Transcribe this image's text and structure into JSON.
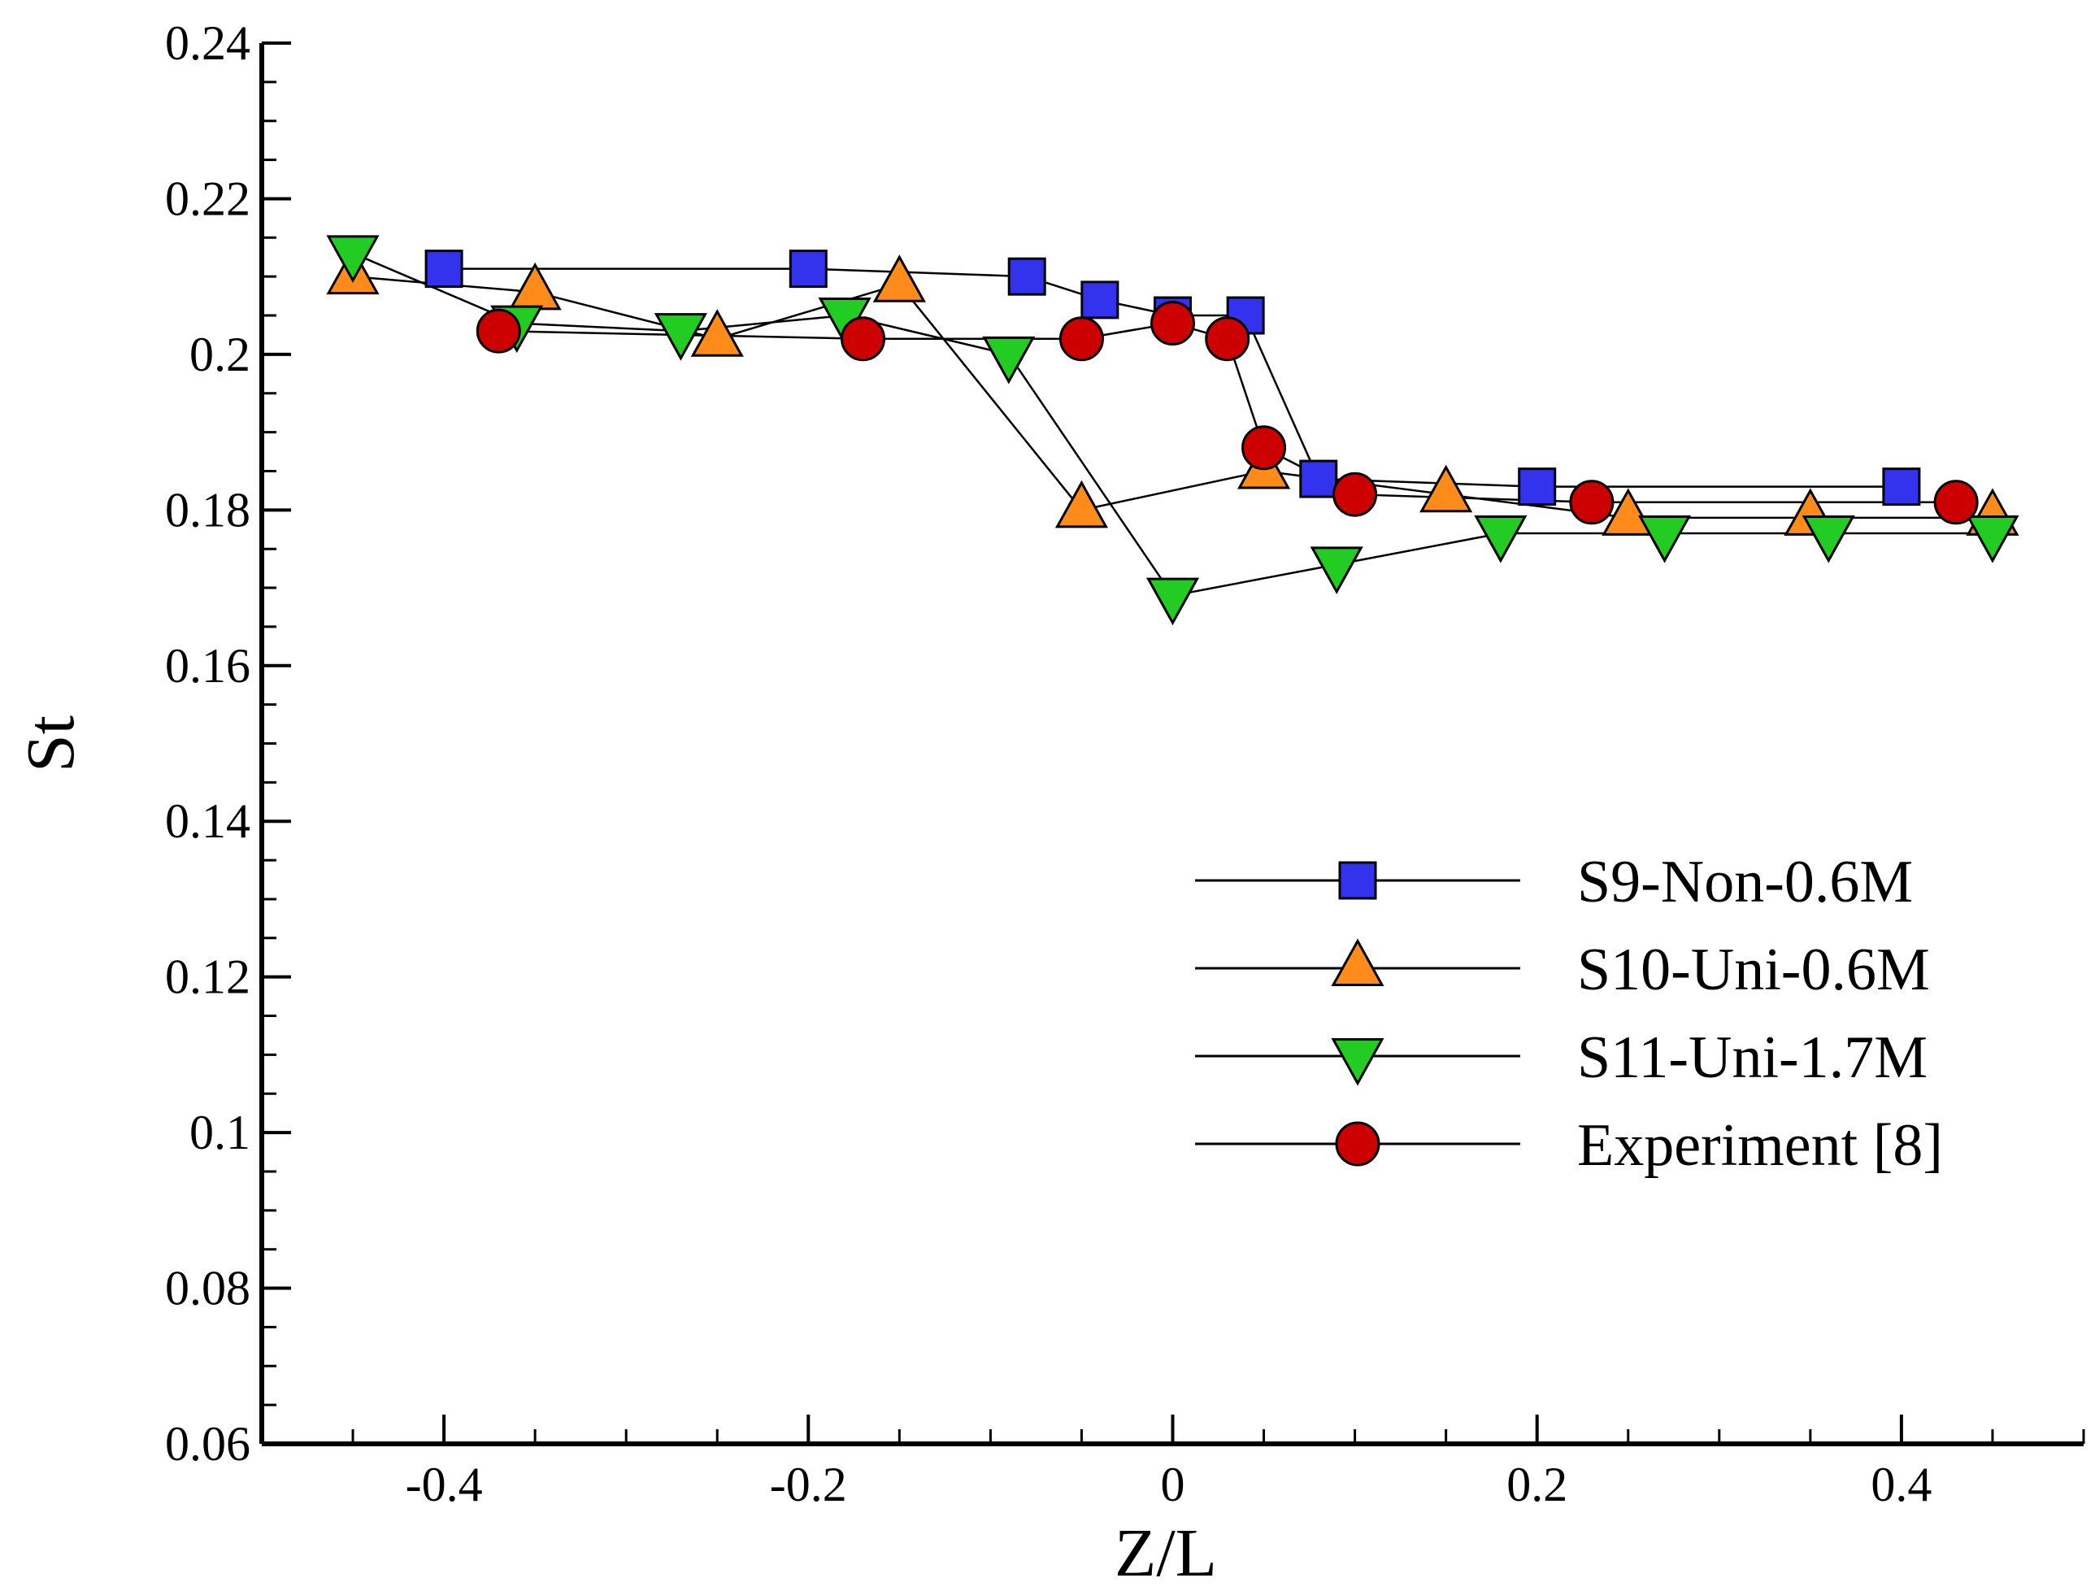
{
  "chart_data": {
    "type": "line",
    "xlabel": "Z/L",
    "ylabel": "St",
    "xlim": [
      -0.5,
      0.5
    ],
    "ylim": [
      0.06,
      0.24
    ],
    "x_ticks": [
      -0.4,
      -0.2,
      0,
      0.2,
      0.4
    ],
    "x_tick_labels": [
      "-0.4",
      "-0.2",
      "0",
      "0.2",
      "0.4"
    ],
    "x_minor_step": 0.05,
    "y_ticks": [
      0.06,
      0.08,
      0.1,
      0.12,
      0.14,
      0.16,
      0.18,
      0.2,
      0.22,
      0.24
    ],
    "y_tick_labels": [
      "0.06",
      "0.08",
      "0.1",
      "0.12",
      "0.14",
      "0.16",
      "0.18",
      "0.2",
      "0.22",
      "0.24"
    ],
    "y_minor_step": 0.005,
    "legend_position": "center-right",
    "series": [
      {
        "name": "S9-Non-0.6M",
        "marker": "square",
        "color": "#3333ee",
        "x": [
          -0.4,
          -0.2,
          -0.08,
          -0.04,
          0,
          0.04,
          0.08,
          0.2,
          0.4
        ],
        "y": [
          0.211,
          0.211,
          0.21,
          0.207,
          0.205,
          0.205,
          0.184,
          0.183,
          0.183
        ]
      },
      {
        "name": "S10-Uni-0.6M",
        "marker": "triangle-up",
        "color": "#ff8c1a",
        "x": [
          -0.45,
          -0.35,
          -0.25,
          -0.15,
          -0.05,
          0.05,
          0.15,
          0.25,
          0.35,
          0.45
        ],
        "y": [
          0.21,
          0.208,
          0.202,
          0.209,
          0.18,
          0.185,
          0.182,
          0.179,
          0.179,
          0.179
        ]
      },
      {
        "name": "S11-Uni-1.7M",
        "marker": "triangle-down",
        "color": "#22cc22",
        "x": [
          -0.45,
          -0.36,
          -0.27,
          -0.18,
          -0.09,
          0,
          0.09,
          0.18,
          0.27,
          0.36,
          0.45
        ],
        "y": [
          0.213,
          0.204,
          0.203,
          0.205,
          0.2,
          0.169,
          0.173,
          0.177,
          0.177,
          0.177,
          0.177
        ]
      },
      {
        "name": "Experiment [8]",
        "marker": "circle",
        "color": "#cc0000",
        "x": [
          -0.37,
          -0.17,
          -0.05,
          0,
          0.03,
          0.05,
          0.1,
          0.23,
          0.43
        ],
        "y": [
          0.203,
          0.202,
          0.202,
          0.204,
          0.202,
          0.188,
          0.182,
          0.181,
          0.181
        ]
      }
    ]
  }
}
